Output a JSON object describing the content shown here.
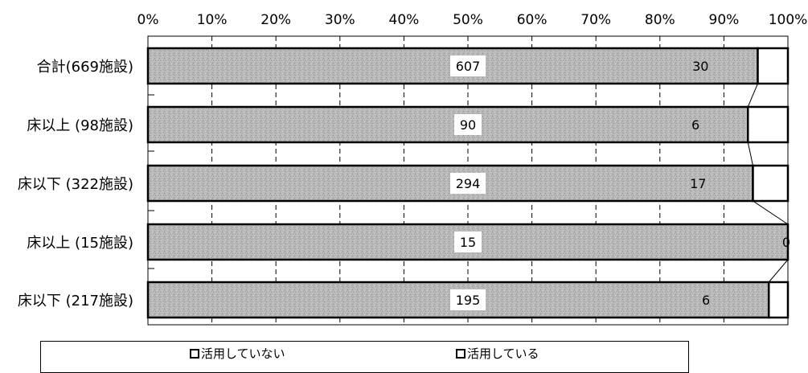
{
  "chart_data": {
    "type": "bar",
    "orientation": "horizontal",
    "stacked": "percent",
    "categories": [
      "合計(669施設)",
      "床以上 (98施設)",
      "床以下 (322施設)",
      "床以上 (15施設)",
      "床以下 (217施設)"
    ],
    "series": [
      {
        "name": "活用していない",
        "values": [
          607,
          90,
          294,
          15,
          195
        ]
      },
      {
        "name": "活用している",
        "values": [
          30,
          6,
          17,
          0,
          6
        ]
      }
    ],
    "xaxis": {
      "range": [
        0,
        100
      ],
      "unit": "%",
      "ticks": [
        "0%",
        "10%",
        "20%",
        "30%",
        "40%",
        "50%",
        "60%",
        "70%",
        "80%",
        "90%",
        "100%"
      ],
      "position": "top"
    },
    "legend_position": "bottom",
    "grid": "vertical dashed"
  },
  "legend": [
    {
      "label": "活用していない"
    },
    {
      "label": "活用している"
    }
  ]
}
